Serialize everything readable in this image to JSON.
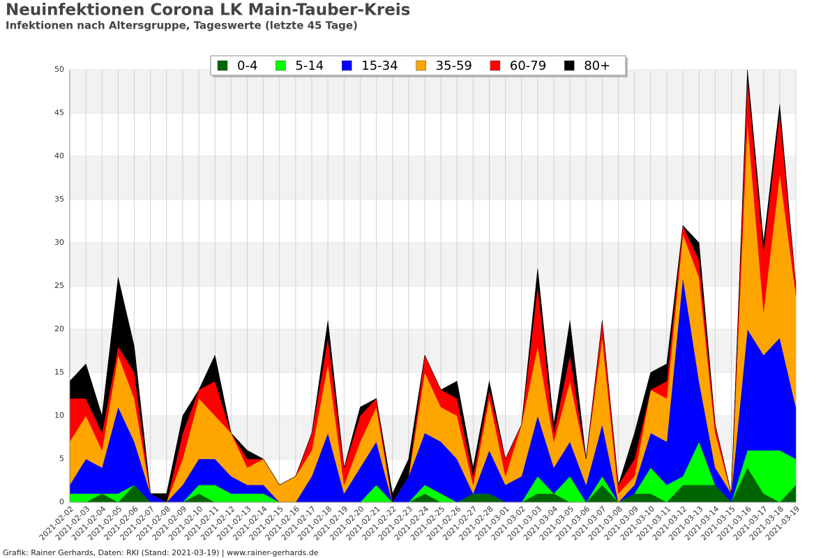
{
  "chart_data": {
    "type": "stacked_area",
    "title": "Neuinfektionen Corona LK Main-Tauber-Kreis",
    "subtitle": "Infektionen nach Altersgruppe, Tageswerte (letzte 45 Tage)",
    "footer": "Grafik: Rainer Gerhards, Daten: RKI (Stand: 2021-03-19) | www.rainer-gerhards.de",
    "categories": [
      "2021-02-02",
      "2021-02-03",
      "2021-02-04",
      "2021-02-05",
      "2021-02-06",
      "2021-02-07",
      "2021-02-08",
      "2021-02-09",
      "2021-02-10",
      "2021-02-11",
      "2021-02-12",
      "2021-02-13",
      "2021-02-14",
      "2021-02-15",
      "2021-02-16",
      "2021-02-17",
      "2021-02-18",
      "2021-02-19",
      "2021-02-20",
      "2021-02-21",
      "2021-02-22",
      "2021-02-23",
      "2021-02-24",
      "2021-02-25",
      "2021-02-26",
      "2021-02-27",
      "2021-02-28",
      "2021-03-01",
      "2021-03-02",
      "2021-03-03",
      "2021-03-04",
      "2021-03-05",
      "2021-03-06",
      "2021-03-07",
      "2021-03-08",
      "2021-03-09",
      "2021-03-10",
      "2021-03-11",
      "2021-03-12",
      "2021-03-13",
      "2021-03-14",
      "2021-03-15",
      "2021-03-16",
      "2021-03-17",
      "2021-03-18",
      "2021-03-19"
    ],
    "series": [
      {
        "name": "0-4",
        "color": "#006400",
        "values": [
          0,
          0,
          1,
          0,
          2,
          0,
          0,
          0,
          1,
          0,
          0,
          0,
          0,
          0,
          0,
          0,
          0,
          0,
          0,
          0,
          0,
          0,
          1,
          0,
          0,
          1,
          1,
          0,
          0,
          1,
          1,
          0,
          0,
          2,
          0,
          1,
          1,
          0,
          2,
          2,
          2,
          0,
          4,
          1,
          0,
          2
        ]
      },
      {
        "name": "5-14",
        "color": "#00ff00",
        "values": [
          1,
          1,
          0,
          1,
          0,
          0,
          0,
          0,
          1,
          2,
          1,
          1,
          1,
          0,
          0,
          0,
          0,
          0,
          0,
          2,
          0,
          0,
          1,
          1,
          0,
          0,
          0,
          0,
          0,
          2,
          0,
          3,
          0,
          1,
          0,
          0,
          3,
          2,
          1,
          5,
          0,
          0,
          2,
          5,
          6,
          3
        ]
      },
      {
        "name": "15-34",
        "color": "#0000ff",
        "values": [
          1,
          4,
          3,
          10,
          5,
          1,
          0,
          2,
          3,
          3,
          2,
          1,
          1,
          0,
          0,
          3,
          8,
          1,
          4,
          5,
          0,
          3,
          6,
          6,
          5,
          0,
          5,
          2,
          3,
          7,
          3,
          4,
          2,
          6,
          0,
          1,
          4,
          5,
          23,
          7,
          2,
          1,
          14,
          11,
          13,
          6
        ]
      },
      {
        "name": "35-59",
        "color": "#ffa500",
        "values": [
          5,
          5,
          2,
          6,
          5,
          0,
          0,
          3,
          7,
          5,
          5,
          2,
          3,
          2,
          3,
          3,
          8,
          1,
          3,
          4,
          0,
          0,
          7,
          4,
          5,
          1,
          6,
          1,
          6,
          8,
          3,
          7,
          3,
          10,
          1,
          1,
          5,
          5,
          5,
          12,
          4,
          0,
          24,
          5,
          19,
          13
        ]
      },
      {
        "name": "60-79",
        "color": "#ff0000",
        "values": [
          5,
          2,
          2,
          1,
          3,
          0,
          0,
          3,
          1,
          4,
          0,
          1,
          0,
          0,
          0,
          2,
          3,
          2,
          3,
          1,
          0,
          0,
          2,
          2,
          2,
          1,
          1,
          2,
          0,
          7,
          1,
          3,
          0,
          2,
          1,
          2,
          0,
          2,
          1,
          2,
          1,
          0,
          5,
          7,
          7,
          1
        ]
      },
      {
        "name": "80+",
        "color": "#000000",
        "values": [
          2,
          4,
          2,
          8,
          3,
          0,
          1,
          2,
          0,
          3,
          0,
          1,
          0,
          0,
          0,
          0,
          2,
          0,
          1,
          0,
          1,
          2,
          0,
          0,
          2,
          1,
          1,
          0,
          0,
          2,
          1,
          4,
          0,
          0,
          0,
          3,
          2,
          2,
          0,
          2,
          0,
          0,
          1,
          1,
          1,
          0
        ]
      }
    ],
    "ylim": [
      0,
      50
    ],
    "yticks": [
      0,
      5,
      10,
      15,
      20,
      25,
      30,
      35,
      40,
      45,
      50
    ],
    "grid": true,
    "legend": "top"
  }
}
